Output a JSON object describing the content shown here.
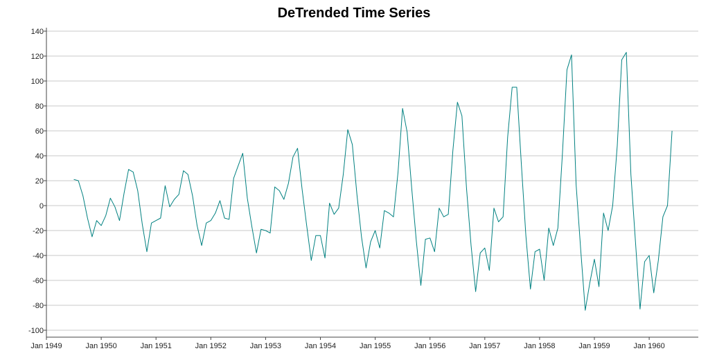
{
  "chart_data": {
    "type": "line",
    "title": "DeTrended Time Series",
    "xlabel": "",
    "ylabel": "",
    "ylim": [
      -105,
      142
    ],
    "yticks": [
      -100,
      -80,
      -60,
      -40,
      -20,
      0,
      20,
      40,
      60,
      80,
      100,
      120,
      140
    ],
    "grid": "horizontal",
    "legend": "none",
    "line_color": "#008080",
    "x_tick_labels": [
      "Jan 1949",
      "Jan 1950",
      "Jan 1951",
      "Jan 1952",
      "Jan 1953",
      "Jan 1954",
      "Jan 1955",
      "Jan 1956",
      "Jan 1957",
      "Jan 1958",
      "Jan 1959",
      "Jan 1960"
    ],
    "x_start": "1949-07",
    "x_end": "1960-12",
    "series": [
      {
        "values": [
          21,
          20,
          8,
          -10,
          -25,
          -12,
          -16,
          -8,
          6,
          -1,
          -12,
          10,
          29,
          27,
          12,
          -15,
          -37,
          -14,
          -12,
          -10,
          16,
          -1,
          5,
          9,
          28,
          25,
          8,
          -16,
          -32,
          -14,
          -12,
          -6,
          4,
          -10,
          -11,
          22,
          32,
          42,
          6,
          -17,
          -38,
          -19,
          -20,
          -22,
          15,
          12,
          5,
          18,
          39,
          46,
          13,
          -16,
          -44,
          -24,
          -24,
          -42,
          2,
          -7,
          -2,
          25,
          61,
          49,
          9,
          -25,
          -50,
          -29,
          -20,
          -34,
          -4,
          -6,
          -9,
          27,
          78,
          59,
          14,
          -28,
          -64,
          -27,
          -26,
          -37,
          -2,
          -9,
          -7,
          44,
          83,
          72,
          14,
          -32,
          -69,
          -38,
          -34,
          -52,
          -2,
          -13,
          -9,
          55,
          95,
          95,
          34,
          -24,
          -67,
          -37,
          -35,
          -60,
          -18,
          -32,
          -18,
          42,
          109,
          121,
          17,
          -35,
          -84,
          -62,
          -43,
          -65,
          -6,
          -20,
          0,
          48,
          117,
          123,
          25,
          -29,
          -83,
          -45,
          -40,
          -70,
          -44,
          -9,
          0,
          60
        ]
      }
    ]
  }
}
